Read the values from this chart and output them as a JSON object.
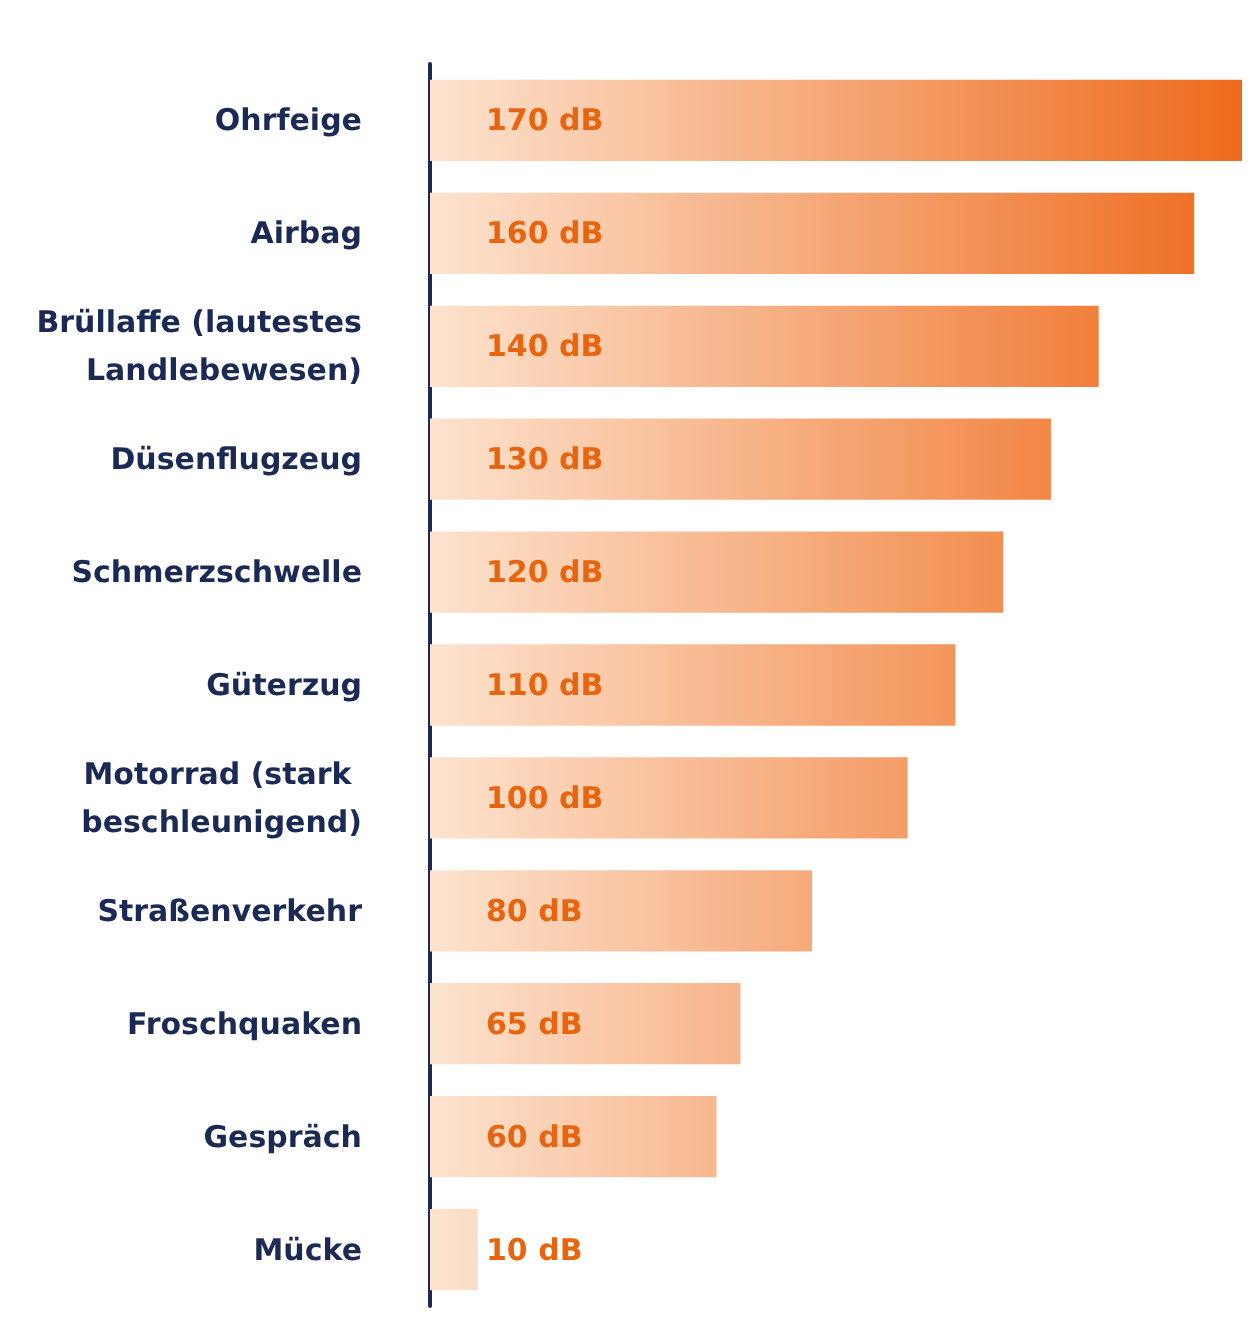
{
  "chart_data": {
    "type": "bar",
    "orientation": "horizontal",
    "colors": [
      "#ee6a1c",
      "#ef7127",
      "#f17f3c",
      "#f28646",
      "#f28e51",
      "#f3955b",
      "#f49c66",
      "#f6aa7b",
      "#f7b58b",
      "#f8b890",
      "#fcdcc4"
    ],
    "categories": [
      "Ohrfeige",
      "Airbag",
      "Brüllaffe (lautestes Landlebewesen)",
      "Düsenflugzeug",
      "Schmerzschwelle",
      "Güterzug",
      "Motorrad (stark beschleunigend)",
      "Straßenverkehr",
      "Froschquaken",
      "Gespräch",
      "Mücke"
    ],
    "values": [
      170,
      160,
      140,
      130,
      120,
      110,
      100,
      80,
      65,
      60,
      10
    ],
    "value_labels": [
      "170 dB",
      "160 dB",
      "140 dB",
      "130 dB",
      "120 dB",
      "110 dB",
      "100 dB",
      "80 dB",
      "65 dB",
      "60 dB",
      "10 dB"
    ]
  }
}
